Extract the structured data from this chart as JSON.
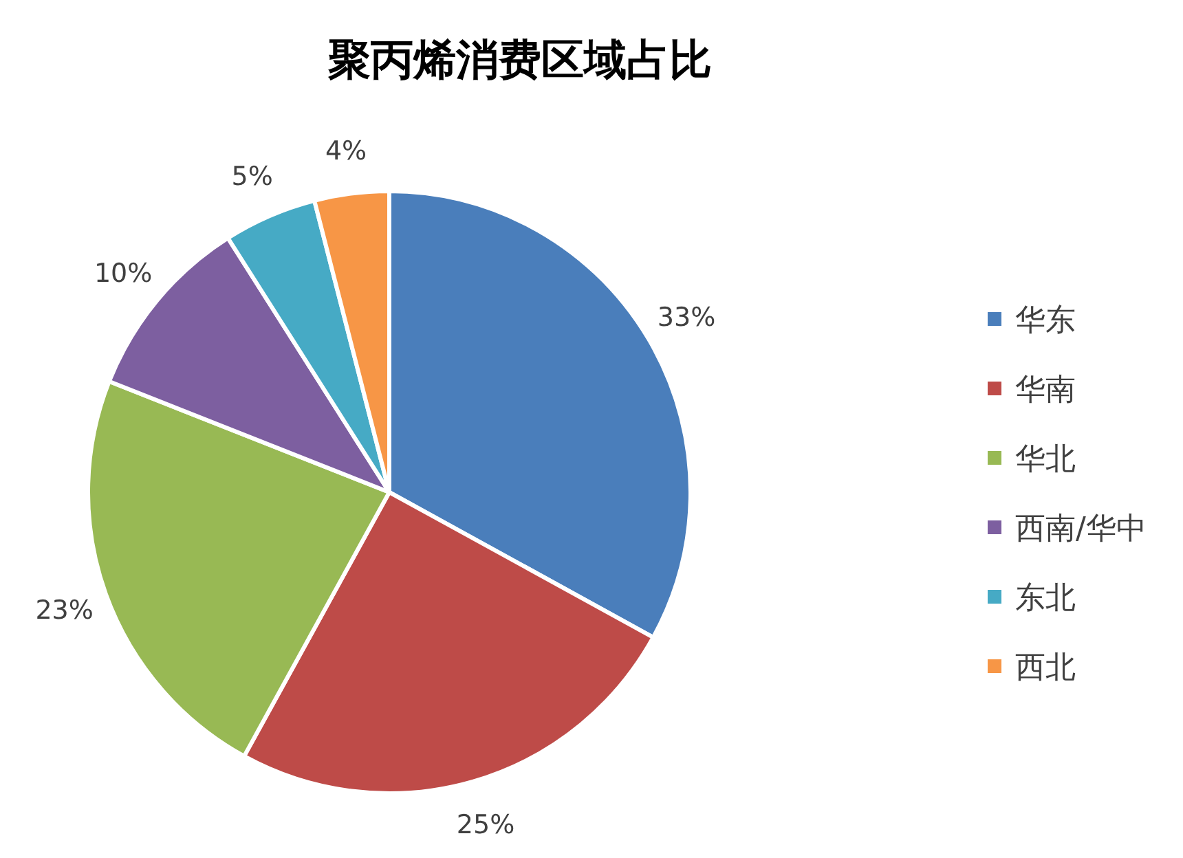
{
  "chart_data": {
    "type": "pie",
    "title": "聚丙烯消费区域占比",
    "categories": [
      "华东",
      "华南",
      "华北",
      "西南/华中",
      "东北",
      "西北"
    ],
    "values": [
      33,
      25,
      23,
      10,
      5,
      4
    ],
    "value_labels": [
      "33%",
      "25%",
      "23%",
      "10%",
      "5%",
      "4%"
    ],
    "colors": [
      "#4a7ebb",
      "#be4b48",
      "#98b954",
      "#7d5fa0",
      "#46aac5",
      "#f79646"
    ],
    "legend": "right"
  }
}
